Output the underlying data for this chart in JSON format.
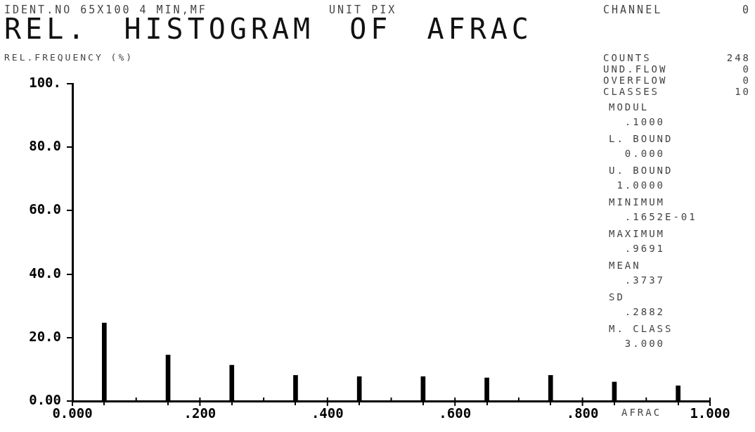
{
  "chart_data": {
    "type": "histogram",
    "title": "REL. HISTOGRAM OF AFRAC",
    "ylabel": "REL.FREQUENCY (%)",
    "xlabel": "AFRAC",
    "bins": [
      0,
      0.1,
      0.2,
      0.3,
      0.4,
      0.5,
      0.6,
      0.7,
      0.8,
      0.9,
      1.0
    ],
    "values": [
      24.6,
      14.5,
      11.3,
      8.1,
      7.7,
      7.7,
      7.3,
      8.1,
      6.0,
      4.8
    ],
    "color": "#000000",
    "xlim": [
      0,
      1
    ],
    "xticks": [
      {
        "value": 0,
        "label": "0.000"
      },
      {
        "value": 0.1,
        "label": null
      },
      {
        "value": 0.2,
        "label": ".200"
      },
      {
        "value": 0.3,
        "label": null
      },
      {
        "value": 0.4,
        "label": ".400"
      },
      {
        "value": 0.5,
        "label": null
      },
      {
        "value": 0.6,
        "label": ".600"
      },
      {
        "value": 0.7,
        "label": null
      },
      {
        "value": 0.8,
        "label": ".800"
      },
      {
        "value": 0.9,
        "label": null
      },
      {
        "value": 1,
        "label": "1.000"
      }
    ],
    "ylim": [
      0,
      100
    ],
    "yticks": [
      {
        "value": 0,
        "label": "0.00"
      },
      {
        "value": 20,
        "label": "20.0"
      },
      {
        "value": 40,
        "label": "40.0"
      },
      {
        "value": 60,
        "label": "60.0"
      },
      {
        "value": 80,
        "label": "80.0"
      },
      {
        "value": 100,
        "label": "100."
      }
    ],
    "grid": false,
    "legend": false,
    "annotations": [
      "IDENT.NO 65X100 4 MIN,MF",
      "UNIT PIX",
      "CHANNEL 0",
      "COUNTS 248",
      "UND.FLOW 0",
      "OVERFLOW 0",
      "CLASSES 10",
      "MODUL\n  .1000",
      "L. BOUND\n  0.000",
      "U. BOUND\n 1.0000",
      "MINIMUM\n  .1652E-01",
      "MAXIMUM\n  .9691",
      "MEAN\n  .3737",
      "SD\n  .2882",
      "M. CLASS\n  3.000"
    ]
  }
}
